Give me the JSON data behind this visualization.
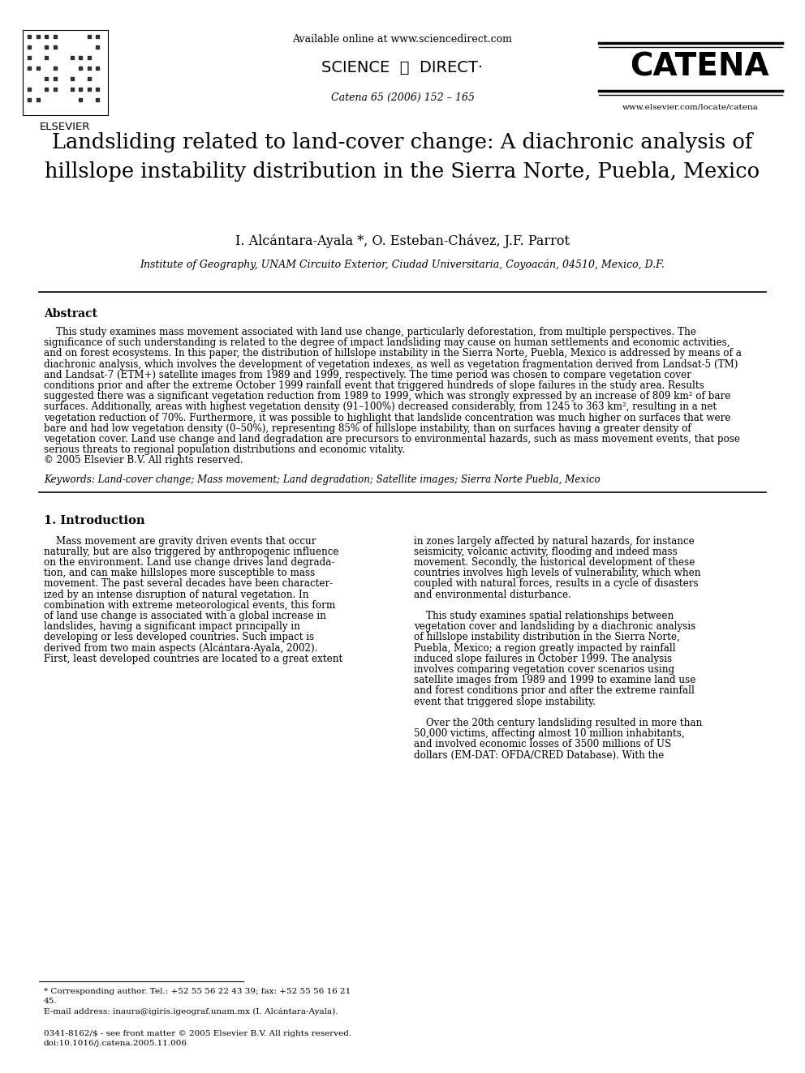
{
  "bg_color": "#ffffff",
  "header": {
    "available_online": "Available online at www.sciencedirect.com",
    "journal_name": "CATENA",
    "catena_issue": "Catena 65 (2006) 152 – 165",
    "elsevier_text": "ELSEVIER",
    "website": "www.elsevier.com/locate/catena"
  },
  "title": "Landsliding related to land-cover change: A diachronic analysis of\nhillslope instability distribution in the Sierra Norte, Puebla, Mexico",
  "authors": "I. Alcántara-Ayala *, O. Esteban-Chávez, J.F. Parrot",
  "affiliation": "Institute of Geography, UNAM Circuito Exterior, Ciudad Universitaria, Coyoacán, 04510, Mexico, D.F.",
  "abstract_title": "Abstract",
  "abstract_lines": [
    "    This study examines mass movement associated with land use change, particularly deforestation, from multiple perspectives. The",
    "significance of such understanding is related to the degree of impact landsliding may cause on human settlements and economic activities,",
    "and on forest ecosystems. In this paper, the distribution of hillslope instability in the Sierra Norte, Puebla, Mexico is addressed by means of a",
    "diachronic analysis, which involves the development of vegetation indexes, as well as vegetation fragmentation derived from Landsat-5 (TM)",
    "and Landsat-7 (ETM+) satellite images from 1989 and 1999, respectively. The time period was chosen to compare vegetation cover",
    "conditions prior and after the extreme October 1999 rainfall event that triggered hundreds of slope failures in the study area. Results",
    "suggested there was a significant vegetation reduction from 1989 to 1999, which was strongly expressed by an increase of 809 km² of bare",
    "surfaces. Additionally, areas with highest vegetation density (91–100%) decreased considerably, from 1245 to 363 km², resulting in a net",
    "vegetation reduction of 70%. Furthermore, it was possible to highlight that landslide concentration was much higher on surfaces that were",
    "bare and had low vegetation density (0–50%), representing 85% of hillslope instability, than on surfaces having a greater density of",
    "vegetation cover. Land use change and land degradation are precursors to environmental hazards, such as mass movement events, that pose",
    "serious threats to regional population distributions and economic vitality.",
    "© 2005 Elsevier B.V. All rights reserved."
  ],
  "keywords": "Keywords: Land-cover change; Mass movement; Land degradation; Satellite images; Sierra Norte Puebla, Mexico",
  "intro_section": "1. Introduction",
  "intro_left_lines": [
    "    Mass movement are gravity driven events that occur",
    "naturally, but are also triggered by anthropogenic influence",
    "on the environment. Land use change drives land degrada-",
    "tion, and can make hillslopes more susceptible to mass",
    "movement. The past several decades have been character-",
    "ized by an intense disruption of natural vegetation. In",
    "combination with extreme meteorological events, this form",
    "of land use change is associated with a global increase in",
    "landslides, having a significant impact principally in",
    "developing or less developed countries. Such impact is",
    "derived from two main aspects (Alcántara-Ayala, 2002).",
    "First, least developed countries are located to a great extent"
  ],
  "intro_right_lines": [
    "in zones largely affected by natural hazards, for instance",
    "seismicity, volcanic activity, flooding and indeed mass",
    "movement. Secondly, the historical development of these",
    "countries involves high levels of vulnerability, which when",
    "coupled with natural forces, results in a cycle of disasters",
    "and environmental disturbance.",
    "",
    "    This study examines spatial relationships between",
    "vegetation cover and landsliding by a diachronic analysis",
    "of hillslope instability distribution in the Sierra Norte,",
    "Puebla, Mexico; a region greatly impacted by rainfall",
    "induced slope failures in October 1999. The analysis",
    "involves comparing vegetation cover scenarios using",
    "satellite images from 1989 and 1999 to examine land use",
    "and forest conditions prior and after the extreme rainfall",
    "event that triggered slope instability.",
    "",
    "    Over the 20th century landsliding resulted in more than",
    "50,000 victims, affecting almost 10 million inhabitants,",
    "and involved economic losses of 3500 millions of US",
    "dollars (EM-DAT: OFDA/CRED Database). With the"
  ],
  "footnote_lines": [
    "* Corresponding author. Tel.: +52 55 56 22 43 39; fax: +52 55 56 16 21",
    "45.",
    "E-mail address: inaura@igiris.igeograf.unam.mx (I. Alcántara-Ayala)."
  ],
  "footer_lines": [
    "0341-8162/$ - see front matter © 2005 Elsevier B.V. All rights reserved.",
    "doi:10.1016/j.catena.2005.11.006"
  ]
}
